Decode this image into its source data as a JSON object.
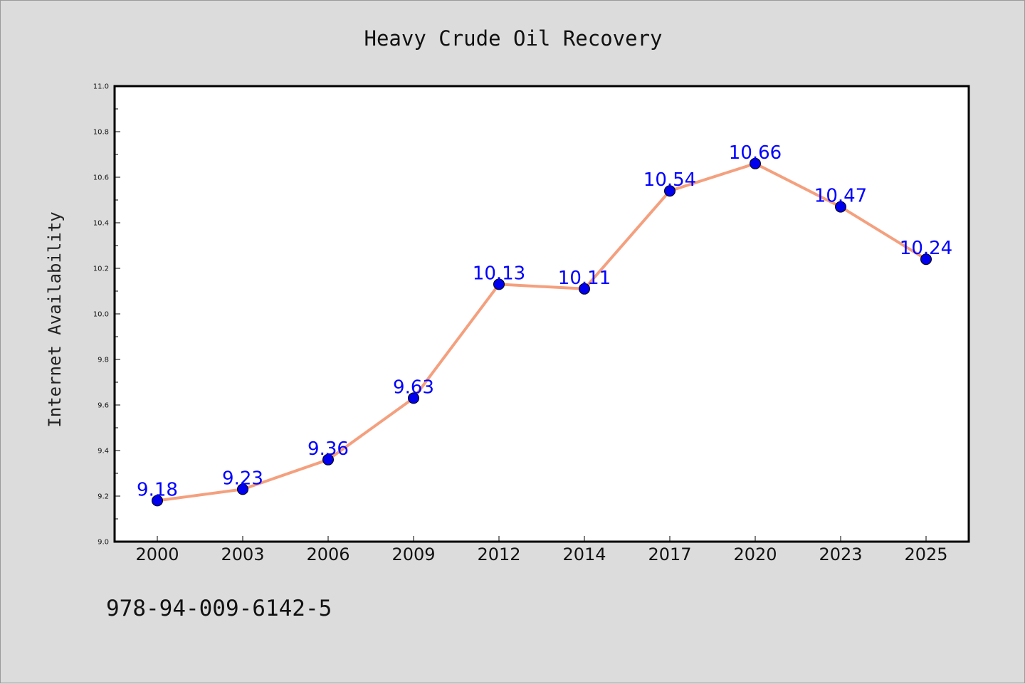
{
  "chart_data": {
    "type": "line",
    "title": "Heavy Crude Oil Recovery",
    "xlabel": "",
    "ylabel": "Internet Availability",
    "categories": [
      "2000",
      "2003",
      "2006",
      "2009",
      "2012",
      "2014",
      "2017",
      "2020",
      "2023",
      "2025"
    ],
    "series": [
      {
        "values": [
          9.18,
          9.23,
          9.36,
          9.63,
          10.13,
          10.11,
          10.54,
          10.66,
          10.47,
          10.24
        ],
        "data_labels": [
          "9.18",
          "9.23",
          "9.36",
          "9.63",
          "10.13",
          "10.11",
          "10.54",
          "10.66",
          "10.47",
          "10.24"
        ]
      }
    ],
    "ylim": [
      9.0,
      11.0
    ],
    "yticks": [
      "9.0",
      "9.2",
      "9.4",
      "9.6",
      "9.8",
      "10.0",
      "10.2",
      "10.4",
      "10.6",
      "10.8",
      "11.0"
    ],
    "grid": false,
    "legend": "none",
    "colors": {
      "line": "#f4a07e",
      "marker": "#0000ee",
      "data_label": "#0000ff",
      "plot_background": "#ffffff",
      "figure_background": "#dcdcdc"
    }
  },
  "annotation": {
    "isbn": "978-94-009-6142-5"
  }
}
